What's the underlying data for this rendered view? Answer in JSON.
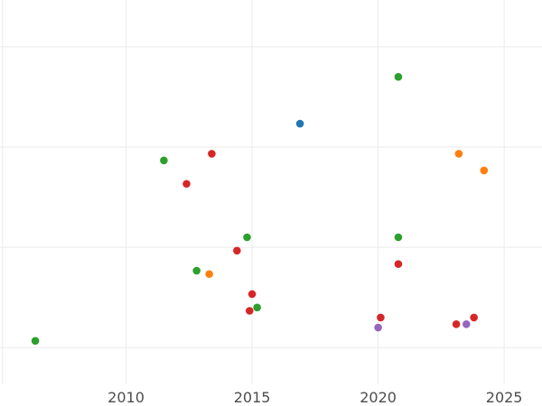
{
  "chart_data": {
    "type": "scatter",
    "title": "",
    "xlabel": "",
    "ylabel": "",
    "xlim": [
      2005,
      2026.5
    ],
    "ylim": [
      0.45,
      6.2
    ],
    "x_ticks": [
      2010,
      2015,
      2020,
      2025
    ],
    "x_tick_labels": [
      "2010",
      "2015",
      "2020",
      "2025"
    ],
    "y_gridlines": [
      1,
      2.5,
      4,
      5.5
    ],
    "grid": true,
    "legend": "none",
    "series": [
      {
        "color": "#2ca02c",
        "points": [
          {
            "x": 2006.4,
            "y": 1.1
          },
          {
            "x": 2011.5,
            "y": 3.8
          },
          {
            "x": 2012.8,
            "y": 2.15
          },
          {
            "x": 2014.8,
            "y": 2.65
          },
          {
            "x": 2015.2,
            "y": 1.6
          },
          {
            "x": 2020.8,
            "y": 5.05
          },
          {
            "x": 2020.8,
            "y": 2.65
          }
        ]
      },
      {
        "color": "#1f77b4",
        "points": [
          {
            "x": 2016.9,
            "y": 4.35
          }
        ]
      },
      {
        "color": "#d62728",
        "points": [
          {
            "x": 2012.4,
            "y": 3.45
          },
          {
            "x": 2013.4,
            "y": 3.9
          },
          {
            "x": 2014.4,
            "y": 2.45
          },
          {
            "x": 2014.9,
            "y": 1.55
          },
          {
            "x": 2015.0,
            "y": 1.8
          },
          {
            "x": 2020.1,
            "y": 1.45
          },
          {
            "x": 2020.8,
            "y": 2.25
          },
          {
            "x": 2023.1,
            "y": 1.35
          },
          {
            "x": 2023.8,
            "y": 1.45
          }
        ]
      },
      {
        "color": "#ff7f0e",
        "points": [
          {
            "x": 2013.3,
            "y": 2.1
          },
          {
            "x": 2023.2,
            "y": 3.9
          },
          {
            "x": 2024.2,
            "y": 3.65
          }
        ]
      },
      {
        "color": "#9467bd",
        "points": [
          {
            "x": 2020.0,
            "y": 1.3
          },
          {
            "x": 2023.5,
            "y": 1.35
          }
        ]
      }
    ]
  }
}
